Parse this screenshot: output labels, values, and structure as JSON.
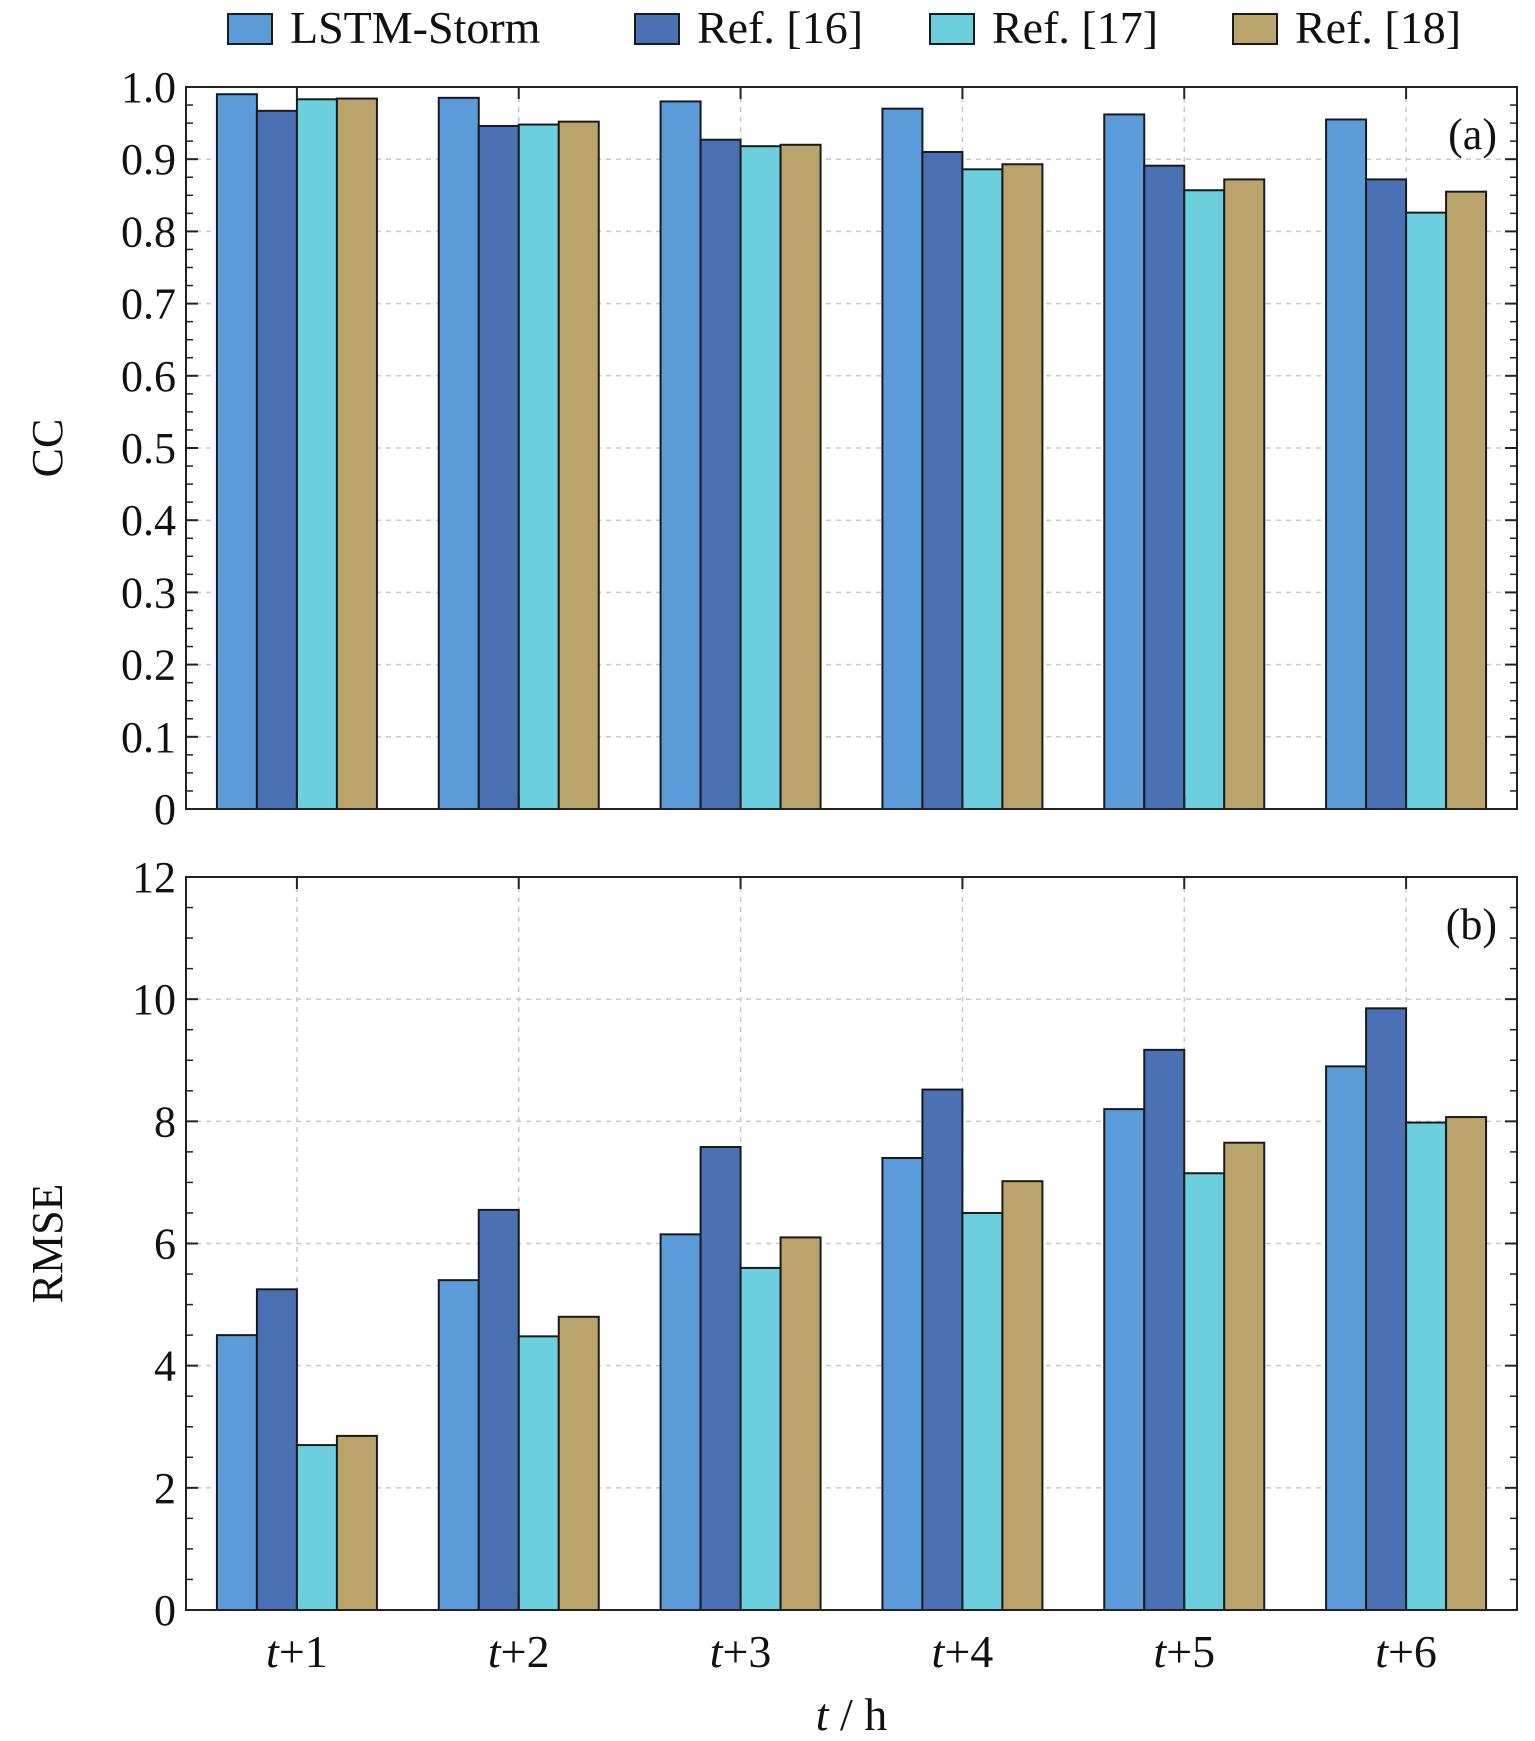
{
  "legend": [
    {
      "label": "LSTM-Storm",
      "color": "#5b9bd9"
    },
    {
      "label": "Ref. [16]",
      "color": "#4a71b4"
    },
    {
      "label": "Ref. [17]",
      "color": "#6bcfdd"
    },
    {
      "label": "Ref. [18]",
      "color": "#bba46c"
    }
  ],
  "chart_data": [
    {
      "type": "bar",
      "panel_label": "(a)",
      "ylabel": "CC",
      "xlabel": "",
      "categories": [
        "t+1",
        "t+2",
        "t+3",
        "t+4",
        "t+5",
        "t+6"
      ],
      "ylim": [
        0,
        1.0
      ],
      "yticks": [
        "0",
        "0.1",
        "0.2",
        "0.3",
        "0.4",
        "0.5",
        "0.6",
        "0.7",
        "0.8",
        "0.9",
        "1.0"
      ],
      "grid": true,
      "legend_position": "top",
      "series": [
        {
          "name": "LSTM-Storm",
          "values": [
            0.99,
            0.985,
            0.98,
            0.97,
            0.962,
            0.955
          ]
        },
        {
          "name": "Ref. [16]",
          "values": [
            0.967,
            0.946,
            0.927,
            0.91,
            0.891,
            0.872
          ]
        },
        {
          "name": "Ref. [17]",
          "values": [
            0.983,
            0.948,
            0.918,
            0.886,
            0.857,
            0.826
          ]
        },
        {
          "name": "Ref. [18]",
          "values": [
            0.984,
            0.952,
            0.92,
            0.893,
            0.872,
            0.855
          ]
        }
      ]
    },
    {
      "type": "bar",
      "panel_label": "(b)",
      "ylabel": "RMSE",
      "xlabel": "t / h",
      "categories": [
        "t+1",
        "t+2",
        "t+3",
        "t+4",
        "t+5",
        "t+6"
      ],
      "ylim": [
        0,
        12
      ],
      "yticks": [
        "0",
        "2",
        "4",
        "6",
        "8",
        "10",
        "12"
      ],
      "grid": true,
      "series": [
        {
          "name": "LSTM-Storm",
          "values": [
            4.5,
            5.4,
            6.15,
            7.4,
            8.2,
            8.9
          ]
        },
        {
          "name": "Ref. [16]",
          "values": [
            5.25,
            6.55,
            7.58,
            8.52,
            9.17,
            9.85
          ]
        },
        {
          "name": "Ref. [17]",
          "values": [
            2.7,
            4.48,
            5.6,
            6.5,
            7.15,
            7.98
          ]
        },
        {
          "name": "Ref. [18]",
          "values": [
            2.85,
            4.8,
            6.1,
            7.02,
            7.65,
            8.07
          ]
        }
      ]
    }
  ]
}
